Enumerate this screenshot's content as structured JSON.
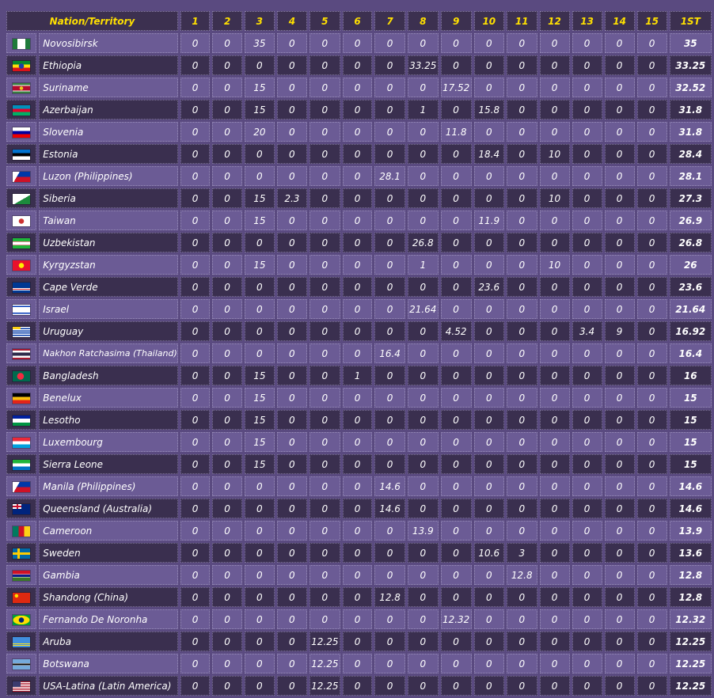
{
  "header": {
    "name": "Nation/Territory",
    "cols": [
      "1",
      "2",
      "3",
      "4",
      "5",
      "6",
      "7",
      "8",
      "9",
      "10",
      "11",
      "12",
      "13",
      "14",
      "15"
    ],
    "total": "1ST"
  },
  "rows": [
    {
      "name": "Novosibirsk",
      "flag": "novosibirsk",
      "values": [
        "0",
        "0",
        "35",
        "0",
        "0",
        "0",
        "0",
        "0",
        "0",
        "0",
        "0",
        "0",
        "0",
        "0",
        "0"
      ],
      "total": "35"
    },
    {
      "name": "Ethiopia",
      "flag": "ethiopia",
      "values": [
        "0",
        "0",
        "0",
        "0",
        "0",
        "0",
        "0",
        "33.25",
        "0",
        "0",
        "0",
        "0",
        "0",
        "0",
        "0"
      ],
      "total": "33.25"
    },
    {
      "name": "Suriname",
      "flag": "suriname",
      "values": [
        "0",
        "0",
        "15",
        "0",
        "0",
        "0",
        "0",
        "0",
        "17.52",
        "0",
        "0",
        "0",
        "0",
        "0",
        "0"
      ],
      "total": "32.52"
    },
    {
      "name": "Azerbaijan",
      "flag": "azerbaijan",
      "values": [
        "0",
        "0",
        "15",
        "0",
        "0",
        "0",
        "0",
        "1",
        "0",
        "15.8",
        "0",
        "0",
        "0",
        "0",
        "0"
      ],
      "total": "31.8"
    },
    {
      "name": "Slovenia",
      "flag": "slovenia",
      "values": [
        "0",
        "0",
        "20",
        "0",
        "0",
        "0",
        "0",
        "0",
        "11.8",
        "0",
        "0",
        "0",
        "0",
        "0",
        "0"
      ],
      "total": "31.8"
    },
    {
      "name": "Estonia",
      "flag": "estonia",
      "values": [
        "0",
        "0",
        "0",
        "0",
        "0",
        "0",
        "0",
        "0",
        "0",
        "18.4",
        "0",
        "10",
        "0",
        "0",
        "0"
      ],
      "total": "28.4"
    },
    {
      "name": "Luzon (Philippines)",
      "flag": "philippines",
      "values": [
        "0",
        "0",
        "0",
        "0",
        "0",
        "0",
        "28.1",
        "0",
        "0",
        "0",
        "0",
        "0",
        "0",
        "0",
        "0"
      ],
      "total": "28.1"
    },
    {
      "name": "Siberia",
      "flag": "siberia",
      "values": [
        "0",
        "0",
        "15",
        "2.3",
        "0",
        "0",
        "0",
        "0",
        "0",
        "0",
        "0",
        "10",
        "0",
        "0",
        "0"
      ],
      "total": "27.3"
    },
    {
      "name": "Taiwan",
      "flag": "taiwan",
      "values": [
        "0",
        "0",
        "15",
        "0",
        "0",
        "0",
        "0",
        "0",
        "0",
        "11.9",
        "0",
        "0",
        "0",
        "0",
        "0"
      ],
      "total": "26.9"
    },
    {
      "name": "Uzbekistan",
      "flag": "uzbekistan",
      "values": [
        "0",
        "0",
        "0",
        "0",
        "0",
        "0",
        "0",
        "26.8",
        "0",
        "0",
        "0",
        "0",
        "0",
        "0",
        "0"
      ],
      "total": "26.8"
    },
    {
      "name": "Kyrgyzstan",
      "flag": "kyrgyzstan",
      "values": [
        "0",
        "0",
        "15",
        "0",
        "0",
        "0",
        "0",
        "1",
        "0",
        "0",
        "0",
        "10",
        "0",
        "0",
        "0"
      ],
      "total": "26"
    },
    {
      "name": "Cape Verde",
      "flag": "capeverde",
      "values": [
        "0",
        "0",
        "0",
        "0",
        "0",
        "0",
        "0",
        "0",
        "0",
        "23.6",
        "0",
        "0",
        "0",
        "0",
        "0"
      ],
      "total": "23.6"
    },
    {
      "name": "Israel",
      "flag": "israel",
      "values": [
        "0",
        "0",
        "0",
        "0",
        "0",
        "0",
        "0",
        "21.64",
        "0",
        "0",
        "0",
        "0",
        "0",
        "0",
        "0"
      ],
      "total": "21.64"
    },
    {
      "name": "Uruguay",
      "flag": "uruguay",
      "values": [
        "0",
        "0",
        "0",
        "0",
        "0",
        "0",
        "0",
        "0",
        "4.52",
        "0",
        "0",
        "0",
        "3.4",
        "9",
        "0"
      ],
      "total": "16.92"
    },
    {
      "name": "Nakhon Ratchasima (Thailand)",
      "flag": "thailand",
      "small": true,
      "values": [
        "0",
        "0",
        "0",
        "0",
        "0",
        "0",
        "16.4",
        "0",
        "0",
        "0",
        "0",
        "0",
        "0",
        "0",
        "0"
      ],
      "total": "16.4"
    },
    {
      "name": "Bangladesh",
      "flag": "bangladesh",
      "values": [
        "0",
        "0",
        "15",
        "0",
        "0",
        "1",
        "0",
        "0",
        "0",
        "0",
        "0",
        "0",
        "0",
        "0",
        "0"
      ],
      "total": "16"
    },
    {
      "name": "Benelux",
      "flag": "benelux",
      "values": [
        "0",
        "0",
        "15",
        "0",
        "0",
        "0",
        "0",
        "0",
        "0",
        "0",
        "0",
        "0",
        "0",
        "0",
        "0"
      ],
      "total": "15"
    },
    {
      "name": "Lesotho",
      "flag": "lesotho",
      "values": [
        "0",
        "0",
        "15",
        "0",
        "0",
        "0",
        "0",
        "0",
        "0",
        "0",
        "0",
        "0",
        "0",
        "0",
        "0"
      ],
      "total": "15"
    },
    {
      "name": "Luxembourg",
      "flag": "luxembourg",
      "values": [
        "0",
        "0",
        "15",
        "0",
        "0",
        "0",
        "0",
        "0",
        "0",
        "0",
        "0",
        "0",
        "0",
        "0",
        "0"
      ],
      "total": "15"
    },
    {
      "name": "Sierra Leone",
      "flag": "sierraleone",
      "values": [
        "0",
        "0",
        "15",
        "0",
        "0",
        "0",
        "0",
        "0",
        "0",
        "0",
        "0",
        "0",
        "0",
        "0",
        "0"
      ],
      "total": "15"
    },
    {
      "name": "Manila (Philippines)",
      "flag": "philippines",
      "values": [
        "0",
        "0",
        "0",
        "0",
        "0",
        "0",
        "14.6",
        "0",
        "0",
        "0",
        "0",
        "0",
        "0",
        "0",
        "0"
      ],
      "total": "14.6"
    },
    {
      "name": "Queensland (Australia)",
      "flag": "australia",
      "values": [
        "0",
        "0",
        "0",
        "0",
        "0",
        "0",
        "14.6",
        "0",
        "0",
        "0",
        "0",
        "0",
        "0",
        "0",
        "0"
      ],
      "total": "14.6"
    },
    {
      "name": "Cameroon",
      "flag": "cameroon",
      "values": [
        "0",
        "0",
        "0",
        "0",
        "0",
        "0",
        "0",
        "13.9",
        "0",
        "0",
        "0",
        "0",
        "0",
        "0",
        "0"
      ],
      "total": "13.9"
    },
    {
      "name": "Sweden",
      "flag": "sweden",
      "values": [
        "0",
        "0",
        "0",
        "0",
        "0",
        "0",
        "0",
        "0",
        "0",
        "10.6",
        "3",
        "0",
        "0",
        "0",
        "0"
      ],
      "total": "13.6"
    },
    {
      "name": "Gambia",
      "flag": "gambia",
      "values": [
        "0",
        "0",
        "0",
        "0",
        "0",
        "0",
        "0",
        "0",
        "0",
        "0",
        "12.8",
        "0",
        "0",
        "0",
        "0"
      ],
      "total": "12.8"
    },
    {
      "name": "Shandong (China)",
      "flag": "china",
      "values": [
        "0",
        "0",
        "0",
        "0",
        "0",
        "0",
        "12.8",
        "0",
        "0",
        "0",
        "0",
        "0",
        "0",
        "0",
        "0"
      ],
      "total": "12.8"
    },
    {
      "name": "Fernando De Noronha",
      "flag": "brazil",
      "values": [
        "0",
        "0",
        "0",
        "0",
        "0",
        "0",
        "0",
        "0",
        "12.32",
        "0",
        "0",
        "0",
        "0",
        "0",
        "0"
      ],
      "total": "12.32"
    },
    {
      "name": "Aruba",
      "flag": "aruba",
      "values": [
        "0",
        "0",
        "0",
        "0",
        "12.25",
        "0",
        "0",
        "0",
        "0",
        "0",
        "0",
        "0",
        "0",
        "0",
        "0"
      ],
      "total": "12.25"
    },
    {
      "name": "Botswana",
      "flag": "botswana",
      "values": [
        "0",
        "0",
        "0",
        "0",
        "12.25",
        "0",
        "0",
        "0",
        "0",
        "0",
        "0",
        "0",
        "0",
        "0",
        "0"
      ],
      "total": "12.25"
    },
    {
      "name": "USA-Latina (Latin America)",
      "flag": "usa",
      "values": [
        "0",
        "0",
        "0",
        "0",
        "12.25",
        "0",
        "0",
        "0",
        "0",
        "0",
        "0",
        "0",
        "0",
        "0",
        "0"
      ],
      "total": "12.25"
    }
  ]
}
